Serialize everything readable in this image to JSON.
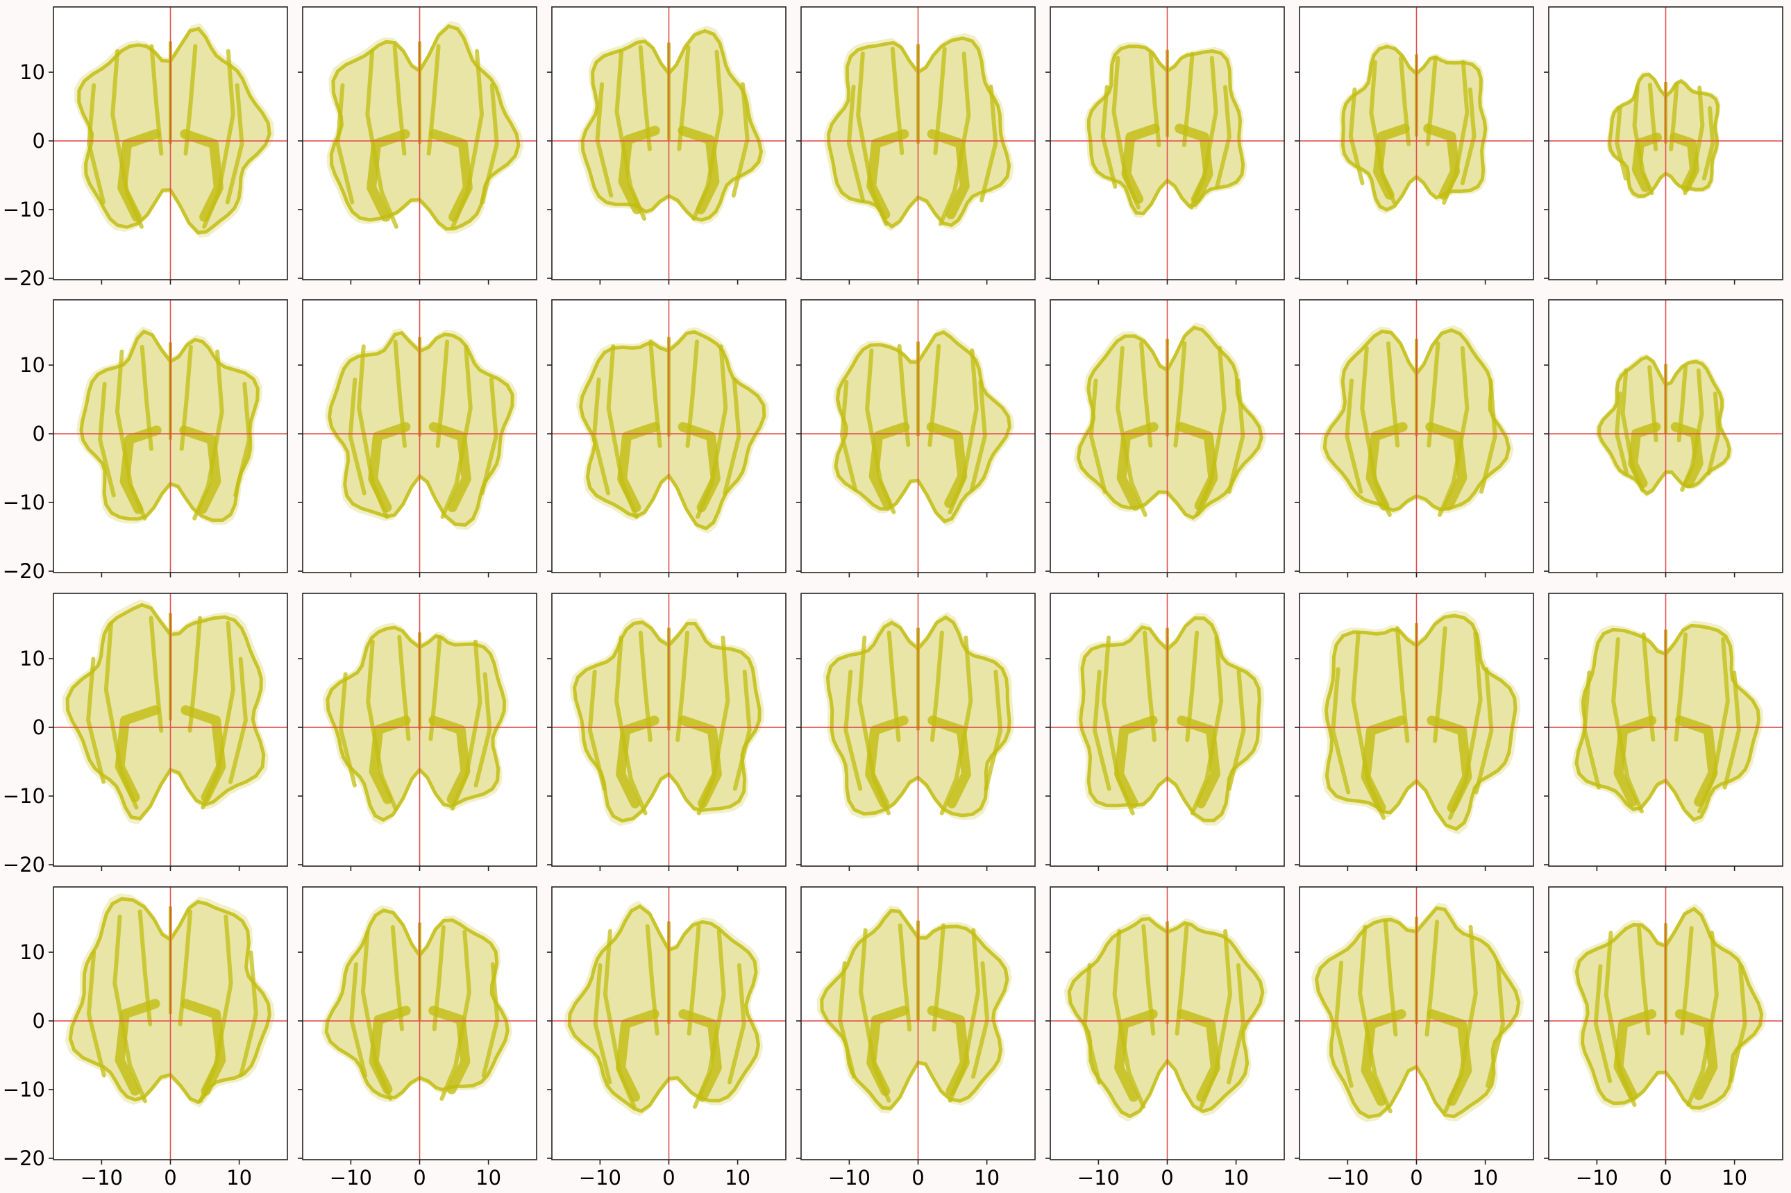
{
  "figure": {
    "background": "#fdf9f8",
    "rows": 4,
    "cols": 7,
    "shared_axes": true
  },
  "chart_data": {
    "type": "scatter",
    "description_visible": "4x7 grid of panels each showing a dense point-cloud slice overlay (yellow-olive) with red crosshair lines at x=0 and y=0",
    "x_ticks": [
      -10,
      0,
      10
    ],
    "y_ticks": [
      10,
      0,
      -10,
      -20
    ],
    "x_tick_labels": [
      "−10",
      "0",
      "10"
    ],
    "y_tick_labels": [
      "10",
      "0",
      "−10",
      "−20"
    ],
    "xlim": [
      -17,
      17
    ],
    "ylim": [
      -20.2,
      19.5
    ],
    "crosshair": {
      "x": 0,
      "y": 0,
      "color": "#e05050"
    },
    "point_color": "#c2bd12",
    "point_fill_light": "#e6e3a0",
    "grid": false,
    "panels": [
      {
        "row": 0,
        "col": 0,
        "scale": 1.0,
        "shift": [
          0,
          0
        ]
      },
      {
        "row": 0,
        "col": 1,
        "scale": 1.0,
        "shift": [
          0,
          0
        ]
      },
      {
        "row": 0,
        "col": 2,
        "scale": 0.95,
        "shift": [
          0,
          0.5
        ]
      },
      {
        "row": 0,
        "col": 3,
        "scale": 0.97,
        "shift": [
          0,
          0
        ]
      },
      {
        "row": 0,
        "col": 4,
        "scale": 0.85,
        "shift": [
          0,
          0.8
        ]
      },
      {
        "row": 0,
        "col": 5,
        "scale": 0.8,
        "shift": [
          0,
          0.8
        ]
      },
      {
        "row": 0,
        "col": 6,
        "scale": 0.6,
        "shift": [
          0,
          -0.5
        ]
      },
      {
        "row": 1,
        "col": 0,
        "scale": 0.95,
        "shift": [
          0,
          -0.5
        ]
      },
      {
        "row": 1,
        "col": 1,
        "scale": 0.97,
        "shift": [
          0,
          0
        ]
      },
      {
        "row": 1,
        "col": 2,
        "scale": 0.97,
        "shift": [
          0,
          0
        ]
      },
      {
        "row": 1,
        "col": 3,
        "scale": 0.92,
        "shift": [
          0,
          0
        ]
      },
      {
        "row": 1,
        "col": 4,
        "scale": 0.95,
        "shift": [
          0,
          0
        ]
      },
      {
        "row": 1,
        "col": 5,
        "scale": 0.95,
        "shift": [
          0,
          0
        ]
      },
      {
        "row": 1,
        "col": 6,
        "scale": 0.68,
        "shift": [
          0,
          0
        ]
      },
      {
        "row": 2,
        "col": 0,
        "scale": 1.05,
        "shift": [
          0,
          1.5
        ]
      },
      {
        "row": 2,
        "col": 1,
        "scale": 0.95,
        "shift": [
          0,
          0
        ]
      },
      {
        "row": 2,
        "col": 2,
        "scale": 1.0,
        "shift": [
          0,
          0
        ]
      },
      {
        "row": 2,
        "col": 3,
        "scale": 1.0,
        "shift": [
          0,
          0
        ]
      },
      {
        "row": 2,
        "col": 4,
        "scale": 1.0,
        "shift": [
          0,
          0
        ]
      },
      {
        "row": 2,
        "col": 5,
        "scale": 1.05,
        "shift": [
          0,
          0
        ]
      },
      {
        "row": 2,
        "col": 6,
        "scale": 0.98,
        "shift": [
          0,
          0
        ]
      },
      {
        "row": 3,
        "col": 0,
        "scale": 1.05,
        "shift": [
          0,
          1.5
        ]
      },
      {
        "row": 3,
        "col": 1,
        "scale": 0.95,
        "shift": [
          0,
          0.5
        ]
      },
      {
        "row": 3,
        "col": 2,
        "scale": 1.0,
        "shift": [
          0,
          0
        ]
      },
      {
        "row": 3,
        "col": 3,
        "scale": 0.97,
        "shift": [
          0,
          0.5
        ]
      },
      {
        "row": 3,
        "col": 4,
        "scale": 1.0,
        "shift": [
          0,
          0
        ]
      },
      {
        "row": 3,
        "col": 5,
        "scale": 1.05,
        "shift": [
          0,
          0
        ]
      },
      {
        "row": 3,
        "col": 6,
        "scale": 0.98,
        "shift": [
          0,
          0
        ]
      }
    ]
  }
}
